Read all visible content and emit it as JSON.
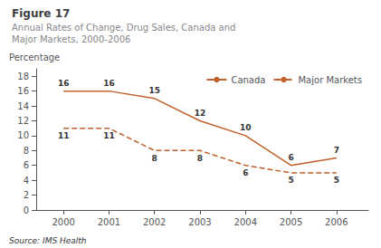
{
  "chart_data": {
    "type": "line",
    "title": "Figure 17",
    "subtitle": "Annual Rates of Change, Drug Sales, Canada and\nMajor Markets, 2000-2006",
    "ylabel": "Percentage",
    "annotations": [
      "Source: IMS Health"
    ],
    "x": [
      2000,
      2001,
      2002,
      2003,
      2004,
      2005,
      2006
    ],
    "series": [
      {
        "name": "Canada",
        "color": "#c0602a",
        "line_style": "solid",
        "values": [
          16,
          16,
          15,
          12,
          10,
          6,
          7
        ]
      },
      {
        "name": "Major Markets",
        "color": "#c0602a",
        "line_style": "dashed",
        "values": [
          11,
          11,
          8,
          8,
          6,
          5,
          5
        ]
      }
    ],
    "xlim": [
      1999.4,
      2006.7
    ],
    "xticks": [
      2000,
      2001,
      2002,
      2003,
      2004,
      2005,
      2006
    ],
    "ylim": [
      0,
      19
    ],
    "yticks": [
      0,
      2,
      4,
      6,
      8,
      10,
      12,
      14,
      16,
      18
    ],
    "grid": false,
    "legend": "upper right",
    "data_labels": true
  }
}
